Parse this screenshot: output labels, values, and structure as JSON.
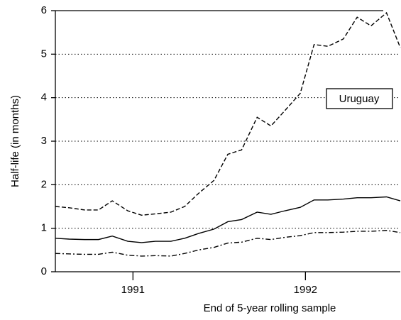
{
  "chart_data": {
    "type": "line",
    "annotation": "Uruguay",
    "x_label": "End of 5-year rolling sample",
    "y_label": "Half-life (in months)",
    "x": [
      1990.55,
      1990.63,
      1990.72,
      1990.8,
      1990.88,
      1990.97,
      1991.05,
      1991.13,
      1991.22,
      1991.3,
      1991.38,
      1991.47,
      1991.55,
      1991.63,
      1991.72,
      1991.8,
      1991.88,
      1991.97,
      1992.05,
      1992.13,
      1992.22,
      1992.3,
      1992.38,
      1992.47,
      1992.55
    ],
    "series": [
      {
        "color": "#000000",
        "dash": "dashed",
        "values": [
          1.5,
          1.47,
          1.42,
          1.42,
          1.63,
          1.4,
          1.3,
          1.33,
          1.37,
          1.5,
          1.8,
          2.1,
          2.7,
          2.8,
          3.55,
          3.35,
          3.7,
          4.1,
          5.22,
          5.18,
          5.35,
          5.85,
          5.65,
          5.95,
          5.15
        ]
      },
      {
        "color": "#000000",
        "dash": "solid",
        "values": [
          0.77,
          0.75,
          0.74,
          0.74,
          0.82,
          0.7,
          0.67,
          0.7,
          0.7,
          0.77,
          0.88,
          0.98,
          1.15,
          1.2,
          1.37,
          1.32,
          1.4,
          1.48,
          1.65,
          1.65,
          1.67,
          1.7,
          1.7,
          1.72,
          1.63
        ]
      },
      {
        "color": "#000000",
        "dash": "dashdot",
        "values": [
          0.42,
          0.41,
          0.4,
          0.4,
          0.45,
          0.38,
          0.36,
          0.37,
          0.36,
          0.42,
          0.5,
          0.56,
          0.66,
          0.68,
          0.77,
          0.74,
          0.79,
          0.83,
          0.9,
          0.9,
          0.91,
          0.93,
          0.93,
          0.95,
          0.9
        ]
      }
    ],
    "xlim": [
      1990.55,
      1992.55
    ],
    "xticks": [
      1991,
      1992
    ],
    "ylim": [
      0,
      6
    ],
    "yticks": [
      0,
      1,
      2,
      3,
      4,
      5,
      6
    ],
    "grid": true
  }
}
